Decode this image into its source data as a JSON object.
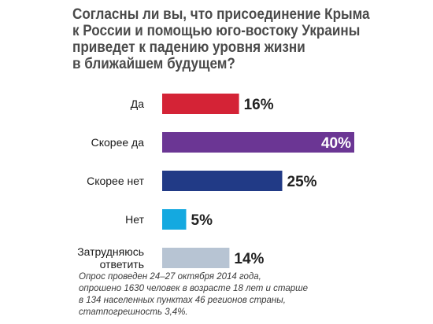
{
  "title_lines": [
    "Согласны ли вы, что присоединение Крыма",
    "к России и помощью юго-востоку Украины",
    "приведет к падению уровня жизни",
    "в ближайшем будущем?"
  ],
  "footnote_lines": [
    "Опрос проведен 24–27 октября 2014 года,",
    "опрошено 1630 человек в возрасте 18 лет и старше",
    "в 134 населенных пунктах 46 регионов страны,",
    "статпогрешность 3,4%."
  ],
  "chart_data": {
    "type": "bar",
    "orientation": "horizontal",
    "categories": [
      [
        "Да"
      ],
      [
        "Скорее да"
      ],
      [
        "Скорее нет"
      ],
      [
        "Нет"
      ],
      [
        "Затрудняюсь",
        "ответить"
      ]
    ],
    "values": [
      16,
      40,
      25,
      5,
      14
    ],
    "value_labels": [
      "16%",
      "40%",
      "25%",
      "5%",
      "14%"
    ],
    "colors": [
      "#d42336",
      "#6b3694",
      "#213a86",
      "#14a9e0",
      "#b7c4d3"
    ],
    "label_inside": [
      false,
      true,
      false,
      false,
      false
    ],
    "xlim": [
      0,
      40
    ],
    "grid": false,
    "legend": "none"
  }
}
